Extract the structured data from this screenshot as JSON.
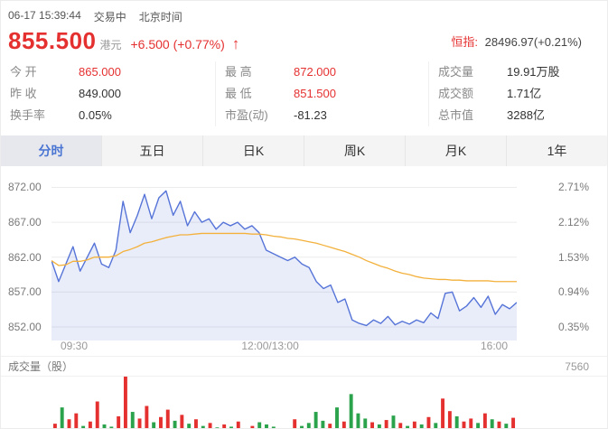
{
  "header": {
    "datetime": "06-17 15:39:44",
    "status": "交易中",
    "timezone": "北京时间"
  },
  "quote": {
    "price": "855.500",
    "currency": "港元",
    "change": "+6.500 (+0.77%)",
    "arrow": "↑",
    "index_label": "恒指:",
    "index_value": "28496.97(+0.21%)"
  },
  "stats": {
    "columns": [
      {
        "rows": [
          {
            "label": "今 开",
            "value": "865.000",
            "color": "red"
          },
          {
            "label": "昨 收",
            "value": "849.000",
            "color": "dark"
          },
          {
            "label": "换手率",
            "value": "0.05%",
            "color": "dark"
          }
        ]
      },
      {
        "rows": [
          {
            "label": "最 高",
            "value": "872.000",
            "color": "red"
          },
          {
            "label": "最 低",
            "value": "851.500",
            "color": "red"
          },
          {
            "label": "市盈(动)",
            "value": "-81.23",
            "color": "dark"
          }
        ]
      },
      {
        "rows": [
          {
            "label": "成交量",
            "value": "19.91万股",
            "color": "dark"
          },
          {
            "label": "成交额",
            "value": "1.71亿",
            "color": "dark"
          },
          {
            "label": "总市值",
            "value": "3288亿",
            "color": "dark"
          }
        ]
      }
    ]
  },
  "tabs": [
    {
      "label": "分时",
      "state": "active"
    },
    {
      "label": "五日",
      "state": "normal"
    },
    {
      "label": "日K",
      "state": "normal"
    },
    {
      "label": "周K",
      "state": "normal"
    },
    {
      "label": "月K",
      "state": "normal"
    },
    {
      "label": "1年",
      "state": "normal"
    }
  ],
  "colors": {
    "red": "#e53030",
    "green": "#2ba24c",
    "price_line": "#5674d8",
    "avg_line": "#f3b13c",
    "tab_active": "#4a75d2"
  },
  "chart_data": {
    "type": "line",
    "title": "分时",
    "x_ticks": [
      "09:30",
      "12:00/13:00",
      "16:00"
    ],
    "y_ticks_left": [
      "872.00",
      "867.00",
      "862.00",
      "857.00",
      "852.00"
    ],
    "y_ticks_right": [
      "2.71%",
      "2.12%",
      "1.53%",
      "0.94%",
      "0.35%"
    ],
    "ylim": [
      850,
      874
    ],
    "prev_close": 849.0,
    "grid": true,
    "series": [
      {
        "name": "price",
        "color": "#5674d8",
        "fill": "rgba(86,116,216,0.13)",
        "values": [
          861.5,
          858.5,
          861.0,
          863.5,
          860.0,
          862.0,
          864.0,
          861.0,
          860.5,
          863.0,
          870.0,
          865.5,
          868.0,
          871.0,
          867.5,
          870.5,
          871.5,
          868.0,
          870.0,
          866.5,
          868.5,
          867.0,
          867.5,
          866.0,
          867.0,
          866.5,
          867.0,
          866.0,
          866.5,
          865.5,
          863.0,
          862.5,
          862.0,
          861.5,
          862.0,
          861.0,
          860.5,
          858.5,
          857.5,
          858.0,
          855.5,
          856.0,
          853.0,
          852.5,
          852.2,
          853.0,
          852.5,
          853.5,
          852.3,
          852.8,
          852.4,
          853.0,
          852.6,
          854.0,
          853.2,
          856.8,
          857.0,
          854.3,
          855.0,
          856.2,
          854.8,
          856.4,
          853.8,
          855.2,
          854.6,
          855.5
        ]
      },
      {
        "name": "average",
        "color": "#f3b13c",
        "values": [
          861.5,
          860.8,
          860.9,
          861.4,
          861.4,
          861.6,
          862.0,
          862.0,
          862.0,
          862.2,
          862.8,
          863.1,
          863.5,
          864.0,
          864.2,
          864.5,
          864.8,
          865.0,
          865.2,
          865.2,
          865.3,
          865.4,
          865.4,
          865.4,
          865.4,
          865.4,
          865.4,
          865.4,
          865.3,
          865.3,
          865.2,
          865.0,
          864.9,
          864.7,
          864.6,
          864.4,
          864.2,
          864.0,
          863.7,
          863.4,
          863.1,
          862.8,
          862.4,
          862.0,
          861.5,
          861.1,
          860.7,
          860.4,
          860.0,
          859.7,
          859.5,
          859.2,
          859.0,
          858.9,
          858.8,
          858.8,
          858.7,
          858.7,
          858.6,
          858.6,
          858.6,
          858.6,
          858.5,
          858.5,
          858.5,
          858.5
        ]
      }
    ],
    "volume": {
      "label": "成交量（股）",
      "max_label": "7560",
      "values": [
        1200,
        3400,
        1800,
        2600,
        900,
        1500,
        4200,
        1100,
        800,
        2200,
        7560,
        2800,
        1900,
        3600,
        1400,
        2100,
        3100,
        1600,
        2400,
        1200,
        1800,
        900,
        1300,
        700,
        1100,
        800,
        1500,
        600,
        900,
        1400,
        1100,
        800,
        600,
        500,
        1800,
        900,
        1300,
        2800,
        1600,
        1200,
        3400,
        1500,
        5200,
        2600,
        1900,
        1400,
        1100,
        1700,
        2300,
        1300,
        900,
        1500,
        1100,
        2100,
        1300,
        4600,
        2900,
        2200,
        1500,
        1900,
        1300,
        2600,
        1800,
        1500,
        1200,
        2000
      ]
    }
  }
}
